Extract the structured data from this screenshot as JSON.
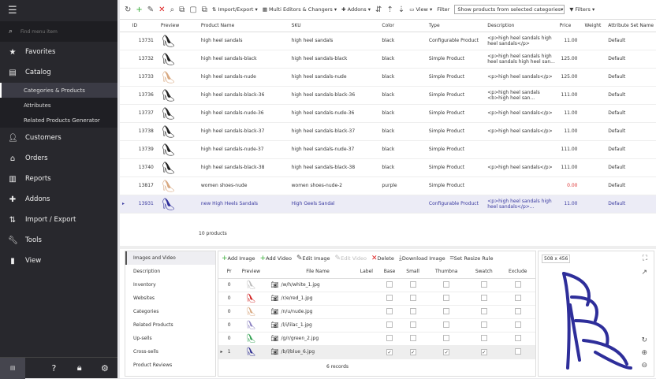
{
  "sidebar": {
    "search_placeholder": "Find menu item",
    "items": [
      {
        "label": "Favorites",
        "icon": "star-icon"
      },
      {
        "label": "Catalog",
        "icon": "catalog-icon"
      },
      {
        "label": "Customers",
        "icon": "user-icon"
      },
      {
        "label": "Orders",
        "icon": "basket-icon"
      },
      {
        "label": "Reports",
        "icon": "chart-icon"
      },
      {
        "label": "Addons",
        "icon": "puzzle-icon"
      },
      {
        "label": "Import / Export",
        "icon": "import-export-icon"
      },
      {
        "label": "Tools",
        "icon": "wrench-icon"
      },
      {
        "label": "View",
        "icon": "view-icon"
      }
    ],
    "catalog_sub": [
      "Categories & Products",
      "Attributes",
      "Related Products Generator"
    ]
  },
  "toolbar": {
    "import_export": "Import/Export",
    "multi_editors": "Multi Editors & Changers",
    "addons": "Addons",
    "view": "View",
    "filter_label": "Filter",
    "filter_value": "Show products from selected categories",
    "filters": "Filters"
  },
  "grid": {
    "columns": [
      "ID",
      "Preview",
      "Product Name",
      "SKU",
      "Color",
      "Type",
      "Description",
      "Price",
      "Weight",
      "Attribute Set Name"
    ],
    "rows": [
      [
        "13731",
        "high heel sandals",
        "high heel sandals",
        "black",
        "Configurable Product",
        "<p>high heel sandals high heel sandals</p>",
        "11.00",
        "",
        "Default"
      ],
      [
        "13732",
        "high heel sandals-black",
        "high heel sandals-black",
        "black",
        "Simple Product",
        "<p>high heel sandals high heel sandals high heel san...",
        "125.00",
        "",
        "Default"
      ],
      [
        "13733",
        "high heel sandals-nude",
        "high heel sandals-nude",
        "black",
        "Simple Product",
        "<p>high heel sandals</p>",
        "125.00",
        "",
        "Default"
      ],
      [
        "13736",
        "high heel sandals-black-36",
        "high heel sandals-black-36",
        "black",
        "Simple Product",
        "<p>high heel sandals <b>high heel san...",
        "111.00",
        "",
        "Default"
      ],
      [
        "13737",
        "high heel sandals-nude-36",
        "high heel sandals-nude-36",
        "black",
        "Simple Product",
        "<p>high heel sandals</p>",
        "11.00",
        "",
        "Default"
      ],
      [
        "13738",
        "high heel sandals-black-37",
        "high heel sandals-black-37",
        "black",
        "Simple Product",
        "<p>high heel sandals</p>",
        "11.00",
        "",
        "Default"
      ],
      [
        "13739",
        "high heel sandals-nude-37",
        "high heel sandals-nude-37",
        "black",
        "Simple Product",
        "",
        "111.00",
        "",
        "Default"
      ],
      [
        "13740",
        "high heel sandals-black-38",
        "high heel sandals-black-38",
        "black",
        "Simple Product",
        "<p>high heel sandals</p>",
        "111.00",
        "",
        "Default"
      ],
      [
        "13817",
        "women shoes-nude",
        "women shoes-nude-2",
        "purple",
        "Simple Product",
        "",
        "0.00",
        "",
        "Default"
      ],
      [
        "13931",
        "new High Heels Sandals",
        "High Geels Sandal",
        "",
        "Configurable Product",
        "<p>high heel sandals high heel sandals</p>...",
        "11.00",
        "",
        "Default"
      ]
    ],
    "footer": "10 products"
  },
  "detail_tabs": [
    "Images and Video",
    "Description",
    "Inventory",
    "Websites",
    "Categories",
    "Related Products",
    "Up-sells",
    "Cross-sells",
    "Product Reviews"
  ],
  "images": {
    "toolbar": [
      "Add Image",
      "Add Video",
      "Edit Image",
      "Edit Video",
      "Delete",
      "Download Image",
      "Set Resize Rule"
    ],
    "columns": [
      "Pr",
      "Preview",
      "File Name",
      "Label",
      "Base",
      "Small",
      "Thumbna",
      "Swatch",
      "Exclude"
    ],
    "rows": [
      {
        "pos": "0",
        "file": "/w/h/white_1.jpg",
        "color": "#bbbbbb",
        "base": false,
        "small": false,
        "thumb": false,
        "swatch": false,
        "exclude": false
      },
      {
        "pos": "0",
        "file": "/r/e/red_1.jpg",
        "color": "#d02020",
        "base": false,
        "small": false,
        "thumb": false,
        "swatch": false,
        "exclude": false
      },
      {
        "pos": "0",
        "file": "/n/u/nude.jpg",
        "color": "#d8a880",
        "base": false,
        "small": false,
        "thumb": false,
        "swatch": false,
        "exclude": false
      },
      {
        "pos": "0",
        "file": "/l/i/lilac_1.jpg",
        "color": "#8a80c0",
        "base": false,
        "small": false,
        "thumb": false,
        "swatch": false,
        "exclude": false
      },
      {
        "pos": "0",
        "file": "/g/r/green_2.jpg",
        "color": "#30a050",
        "base": false,
        "small": false,
        "thumb": false,
        "swatch": false,
        "exclude": false
      },
      {
        "pos": "1",
        "file": "/b/l/blue_6.jpg",
        "color": "#2a2a90",
        "base": true,
        "small": true,
        "thumb": true,
        "swatch": true,
        "exclude": false
      }
    ],
    "footer": "6 records",
    "preview_size": "508 x 456"
  }
}
